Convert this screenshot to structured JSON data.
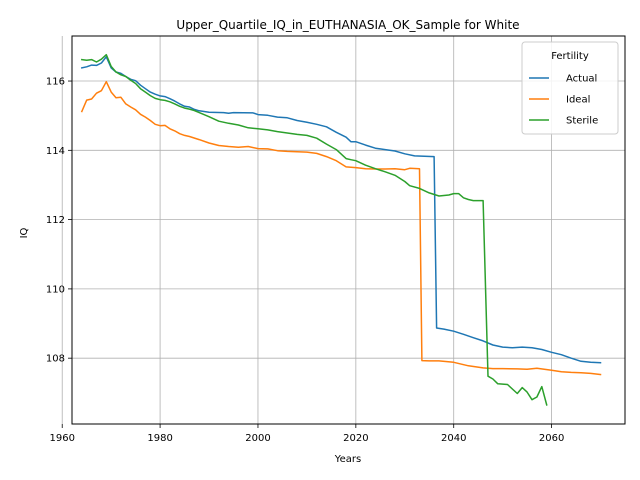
{
  "chart_data": {
    "type": "line",
    "title": "Upper_Quartile_IQ_in_EUTHANASIA_OK_Sample for White",
    "xlabel": "Years",
    "ylabel": "IQ",
    "xlim": [
      1962,
      2075
    ],
    "ylim": [
      106.1,
      117.3
    ],
    "xticks": [
      1960,
      1980,
      2000,
      2020,
      2040,
      2060
    ],
    "yticks": [
      108,
      110,
      112,
      114,
      116
    ],
    "grid": true,
    "legend": {
      "title": "Fertility",
      "placement": "top-right"
    },
    "series": [
      {
        "name": "Actual",
        "color": "#1f77b4",
        "points": [
          [
            1964,
            116.38
          ],
          [
            1965,
            116.41
          ],
          [
            1966,
            116.46
          ],
          [
            1967,
            116.45
          ],
          [
            1968,
            116.52
          ],
          [
            1969,
            116.7
          ],
          [
            1970,
            116.38
          ],
          [
            1971,
            116.26
          ],
          [
            1972,
            116.22
          ],
          [
            1973,
            116.13
          ],
          [
            1974,
            116.05
          ],
          [
            1975,
            116.01
          ],
          [
            1976,
            115.88
          ],
          [
            1977,
            115.78
          ],
          [
            1978,
            115.68
          ],
          [
            1979,
            115.62
          ],
          [
            1980,
            115.57
          ],
          [
            1981,
            115.55
          ],
          [
            1982,
            115.49
          ],
          [
            1983,
            115.42
          ],
          [
            1984,
            115.34
          ],
          [
            1985,
            115.27
          ],
          [
            1986,
            115.25
          ],
          [
            1987,
            115.18
          ],
          [
            1988,
            115.14
          ],
          [
            1989,
            115.12
          ],
          [
            1990,
            115.1
          ],
          [
            1993,
            115.09
          ],
          [
            1994,
            115.07
          ],
          [
            1995,
            115.09
          ],
          [
            1999,
            115.08
          ],
          [
            2000,
            115.03
          ],
          [
            2002,
            115.01
          ],
          [
            2004,
            114.96
          ],
          [
            2006,
            114.94
          ],
          [
            2008,
            114.86
          ],
          [
            2010,
            114.81
          ],
          [
            2012,
            114.75
          ],
          [
            2014,
            114.68
          ],
          [
            2016,
            114.52
          ],
          [
            2018,
            114.38
          ],
          [
            2019,
            114.25
          ],
          [
            2020,
            114.25
          ],
          [
            2022,
            114.15
          ],
          [
            2024,
            114.06
          ],
          [
            2026,
            114.02
          ],
          [
            2028,
            113.98
          ],
          [
            2030,
            113.9
          ],
          [
            2032,
            113.84
          ],
          [
            2034,
            113.83
          ],
          [
            2036,
            113.82
          ],
          [
            2036.5,
            108.87
          ],
          [
            2038,
            108.84
          ],
          [
            2040,
            108.78
          ],
          [
            2042,
            108.69
          ],
          [
            2044,
            108.59
          ],
          [
            2046,
            108.5
          ],
          [
            2048,
            108.38
          ],
          [
            2050,
            108.32
          ],
          [
            2052,
            108.3
          ],
          [
            2054,
            108.32
          ],
          [
            2056,
            108.3
          ],
          [
            2058,
            108.25
          ],
          [
            2060,
            108.17
          ],
          [
            2062,
            108.1
          ],
          [
            2064,
            108.0
          ],
          [
            2066,
            107.91
          ],
          [
            2068,
            107.88
          ],
          [
            2070,
            107.87
          ]
        ]
      },
      {
        "name": "Ideal",
        "color": "#ff7f0e",
        "points": [
          [
            1964,
            115.12
          ],
          [
            1965,
            115.45
          ],
          [
            1966,
            115.48
          ],
          [
            1967,
            115.65
          ],
          [
            1968,
            115.72
          ],
          [
            1969,
            115.98
          ],
          [
            1970,
            115.68
          ],
          [
            1971,
            115.52
          ],
          [
            1972,
            115.53
          ],
          [
            1973,
            115.34
          ],
          [
            1974,
            115.25
          ],
          [
            1975,
            115.17
          ],
          [
            1976,
            115.04
          ],
          [
            1977,
            114.96
          ],
          [
            1978,
            114.86
          ],
          [
            1979,
            114.75
          ],
          [
            1980,
            114.71
          ],
          [
            1981,
            114.72
          ],
          [
            1982,
            114.62
          ],
          [
            1983,
            114.56
          ],
          [
            1984,
            114.48
          ],
          [
            1985,
            114.43
          ],
          [
            1986,
            114.4
          ],
          [
            1988,
            114.31
          ],
          [
            1990,
            114.21
          ],
          [
            1992,
            114.14
          ],
          [
            1994,
            114.11
          ],
          [
            1996,
            114.09
          ],
          [
            1998,
            114.11
          ],
          [
            2000,
            114.05
          ],
          [
            2002,
            114.04
          ],
          [
            2004,
            113.99
          ],
          [
            2006,
            113.97
          ],
          [
            2008,
            113.96
          ],
          [
            2010,
            113.95
          ],
          [
            2012,
            113.91
          ],
          [
            2014,
            113.82
          ],
          [
            2016,
            113.7
          ],
          [
            2018,
            113.52
          ],
          [
            2020,
            113.5
          ],
          [
            2022,
            113.47
          ],
          [
            2024,
            113.46
          ],
          [
            2026,
            113.46
          ],
          [
            2028,
            113.47
          ],
          [
            2030,
            113.44
          ],
          [
            2031,
            113.48
          ],
          [
            2033,
            113.47
          ],
          [
            2033.5,
            107.93
          ],
          [
            2035,
            107.92
          ],
          [
            2037,
            107.92
          ],
          [
            2040,
            107.88
          ],
          [
            2043,
            107.78
          ],
          [
            2046,
            107.72
          ],
          [
            2048,
            107.7
          ],
          [
            2050,
            107.7
          ],
          [
            2053,
            107.69
          ],
          [
            2055,
            107.68
          ],
          [
            2057,
            107.71
          ],
          [
            2060,
            107.65
          ],
          [
            2062,
            107.61
          ],
          [
            2064,
            107.59
          ],
          [
            2066,
            107.58
          ],
          [
            2068,
            107.56
          ],
          [
            2070,
            107.53
          ]
        ]
      },
      {
        "name": "Sterile",
        "color": "#2ca02c",
        "points": [
          [
            1964,
            116.62
          ],
          [
            1965,
            116.6
          ],
          [
            1966,
            116.62
          ],
          [
            1967,
            116.55
          ],
          [
            1968,
            116.63
          ],
          [
            1969,
            116.76
          ],
          [
            1970,
            116.42
          ],
          [
            1971,
            116.26
          ],
          [
            1972,
            116.18
          ],
          [
            1973,
            116.13
          ],
          [
            1974,
            116.02
          ],
          [
            1975,
            115.93
          ],
          [
            1976,
            115.78
          ],
          [
            1977,
            115.68
          ],
          [
            1978,
            115.58
          ],
          [
            1979,
            115.5
          ],
          [
            1980,
            115.46
          ],
          [
            1981,
            115.44
          ],
          [
            1982,
            115.4
          ],
          [
            1983,
            115.34
          ],
          [
            1984,
            115.27
          ],
          [
            1985,
            115.22
          ],
          [
            1986,
            115.19
          ],
          [
            1987,
            115.15
          ],
          [
            1988,
            115.09
          ],
          [
            1990,
            114.97
          ],
          [
            1992,
            114.84
          ],
          [
            1994,
            114.78
          ],
          [
            1996,
            114.73
          ],
          [
            1998,
            114.65
          ],
          [
            2000,
            114.62
          ],
          [
            2002,
            114.59
          ],
          [
            2004,
            114.54
          ],
          [
            2006,
            114.5
          ],
          [
            2008,
            114.46
          ],
          [
            2010,
            114.43
          ],
          [
            2012,
            114.35
          ],
          [
            2014,
            114.18
          ],
          [
            2016,
            114.02
          ],
          [
            2018,
            113.76
          ],
          [
            2019,
            113.73
          ],
          [
            2020,
            113.7
          ],
          [
            2022,
            113.57
          ],
          [
            2024,
            113.47
          ],
          [
            2026,
            113.38
          ],
          [
            2028,
            113.28
          ],
          [
            2030,
            113.1
          ],
          [
            2031,
            112.98
          ],
          [
            2033,
            112.9
          ],
          [
            2035,
            112.77
          ],
          [
            2037,
            112.68
          ],
          [
            2039,
            112.71
          ],
          [
            2040,
            112.75
          ],
          [
            2041,
            112.75
          ],
          [
            2042,
            112.63
          ],
          [
            2043,
            112.58
          ],
          [
            2044,
            112.55
          ],
          [
            2046,
            112.55
          ],
          [
            2047,
            107.48
          ],
          [
            2048,
            107.4
          ],
          [
            2049,
            107.26
          ],
          [
            2051,
            107.24
          ],
          [
            2053,
            106.98
          ],
          [
            2054,
            107.15
          ],
          [
            2055,
            107.02
          ],
          [
            2056,
            106.8
          ],
          [
            2057,
            106.88
          ],
          [
            2058,
            107.18
          ],
          [
            2059,
            106.65
          ]
        ]
      }
    ]
  }
}
